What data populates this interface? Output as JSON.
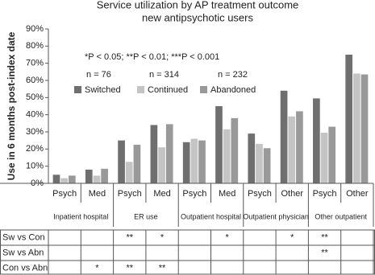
{
  "chart_data": {
    "type": "bar",
    "title": "Service utilization by AP treatment outcome",
    "subtitle": "new antipsychotic users",
    "y_label": "Use in 6 months post-index date",
    "annotations": [
      "*P < 0.05;  **P < 0.01;  ***P < 0.001",
      "n = 76",
      "n = 314",
      "n = 232"
    ],
    "categories": [
      "Psych",
      "Med",
      "Psych",
      "Med",
      "Psych",
      "Med",
      "Psych",
      "Other",
      "Psych",
      "Other"
    ],
    "groups": [
      "Inpatient hospital",
      "ER use",
      "Outpatient hospital",
      "Outpatient physician",
      "Other outpatient"
    ],
    "series": [
      {
        "name": "Switched",
        "color": "#6f6f6f",
        "values": [
          5,
          8,
          25,
          34,
          24,
          45,
          29,
          54,
          49.5,
          75
        ]
      },
      {
        "name": "Continued",
        "color": "#c4c4c4",
        "values": [
          3,
          4.5,
          12.5,
          21,
          26,
          31.5,
          23,
          39,
          29.5,
          64
        ]
      },
      {
        "name": "Abandoned",
        "color": "#999999",
        "values": [
          4.5,
          8.5,
          22.5,
          34.5,
          25,
          38,
          20.5,
          42,
          33,
          63.5
        ]
      }
    ],
    "ylim": [
      0,
      90
    ],
    "yticks": [
      {
        "value": 0,
        "label": "0%"
      },
      {
        "value": 10,
        "label": "10%"
      },
      {
        "value": 20,
        "label": "20%"
      },
      {
        "value": 30,
        "label": "30%"
      },
      {
        "value": 40,
        "label": "40%"
      },
      {
        "value": 50,
        "label": "50%"
      },
      {
        "value": 60,
        "label": "60%"
      },
      {
        "value": 70,
        "label": "70%"
      },
      {
        "value": 80,
        "label": "80%"
      },
      {
        "value": 90,
        "label": "90%"
      }
    ],
    "grid": false
  },
  "table": {
    "rows": [
      {
        "label": "Sw vs Con",
        "cells": [
          null,
          null,
          "**",
          "*",
          null,
          "*",
          null,
          "*",
          "**",
          null
        ]
      },
      {
        "label": "Sw vs Abn",
        "cells": [
          null,
          null,
          null,
          null,
          null,
          null,
          null,
          null,
          "**",
          null
        ]
      },
      {
        "label": "Con vs Abn",
        "cells": [
          null,
          "*",
          "**",
          "**",
          null,
          null,
          null,
          null,
          null,
          null
        ]
      }
    ]
  }
}
